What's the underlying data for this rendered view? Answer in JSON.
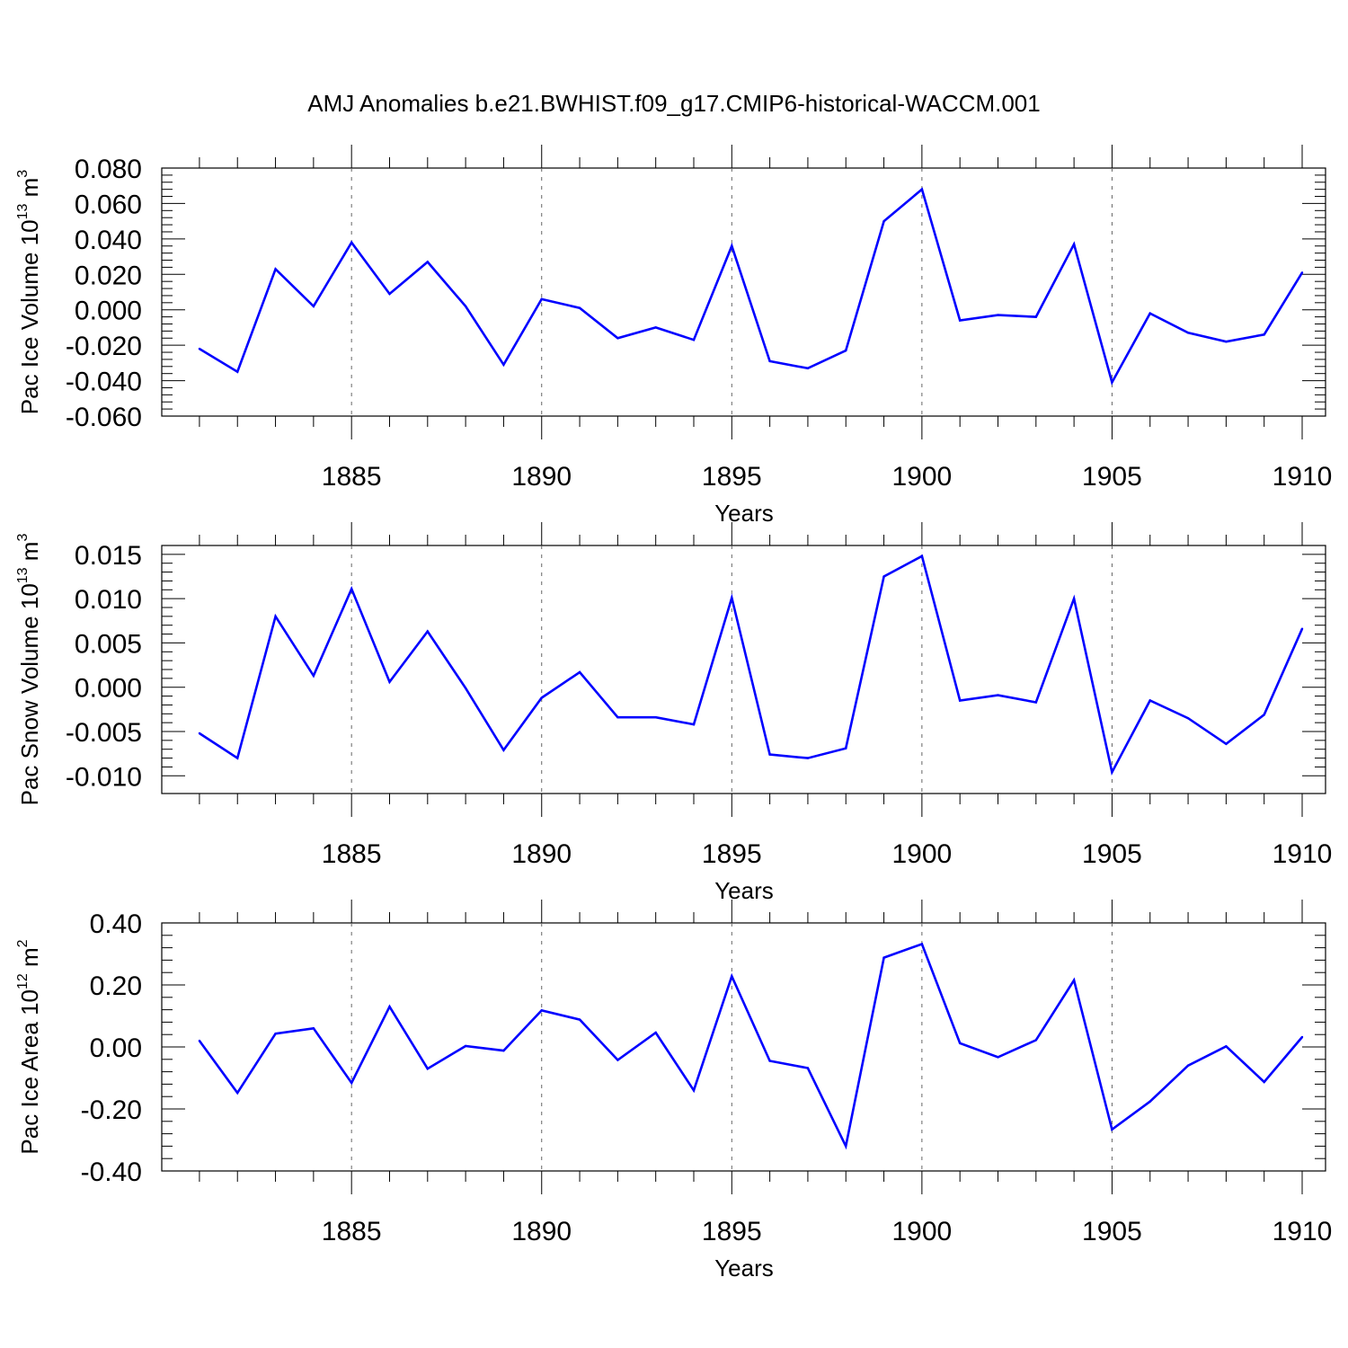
{
  "title": "AMJ Anomalies b.e21.BWHIST.f09_g17.CMIP6-historical-WACCM.001",
  "line_color": "#0000ff",
  "chart_data": [
    {
      "type": "line",
      "title": "AMJ Anomalies b.e21.BWHIST.f09_g17.CMIP6-historical-WACCM.001",
      "xlabel": "Years",
      "ylabel": {
        "text": "Pac Ice Volume 10",
        "exp": "13",
        "unit": " m",
        "unit_exp": "3"
      },
      "xlim": [
        1880.6,
        1910
      ],
      "ylim": [
        -0.06,
        0.08
      ],
      "x_ticks": [
        1885,
        1890,
        1895,
        1900,
        1905,
        1910
      ],
      "x_ticklabels": [
        "1885",
        "1890",
        "1895",
        "1900",
        "1905",
        "1910"
      ],
      "y_ticks": [
        -0.06,
        -0.04,
        -0.02,
        0.0,
        0.02,
        0.04,
        0.06,
        0.08
      ],
      "y_ticklabels": [
        "-0.060",
        "-0.040",
        "-0.020",
        "0.000",
        "0.020",
        "0.040",
        "0.060",
        "0.080"
      ],
      "x": [
        1881,
        1882,
        1883,
        1884,
        1885,
        1886,
        1887,
        1888,
        1889,
        1890,
        1891,
        1892,
        1893,
        1894,
        1895,
        1896,
        1897,
        1898,
        1899,
        1900,
        1901,
        1902,
        1903,
        1904,
        1905,
        1906,
        1907,
        1908,
        1909,
        1910
      ],
      "series": [
        {
          "values": [
            -0.022,
            -0.035,
            0.023,
            0.002,
            0.038,
            0.009,
            0.027,
            0.002,
            -0.031,
            0.006,
            0.001,
            -0.016,
            -0.01,
            -0.017,
            0.036,
            -0.029,
            -0.033,
            -0.023,
            0.05,
            0.068,
            -0.006,
            -0.003,
            -0.004,
            0.037,
            -0.041,
            -0.002,
            -0.013,
            -0.018,
            -0.014,
            0.021
          ],
          "color": "#0000ff"
        }
      ]
    },
    {
      "type": "line",
      "xlabel": "Years",
      "ylabel": {
        "text": "Pac Snow Volume 10",
        "exp": "13",
        "unit": " m",
        "unit_exp": "3"
      },
      "xlim": [
        1880.6,
        1910
      ],
      "ylim": [
        -0.012,
        0.016
      ],
      "x_ticks": [
        1885,
        1890,
        1895,
        1900,
        1905,
        1910
      ],
      "x_ticklabels": [
        "1885",
        "1890",
        "1895",
        "1900",
        "1905",
        "1910"
      ],
      "y_ticks": [
        -0.01,
        -0.005,
        0.0,
        0.005,
        0.01,
        0.015
      ],
      "y_ticklabels": [
        "-0.010",
        "-0.005",
        "0.000",
        "0.005",
        "0.010",
        "0.015"
      ],
      "x": [
        1881,
        1882,
        1883,
        1884,
        1885,
        1886,
        1887,
        1888,
        1889,
        1890,
        1891,
        1892,
        1893,
        1894,
        1895,
        1896,
        1897,
        1898,
        1899,
        1900,
        1901,
        1902,
        1903,
        1904,
        1905,
        1906,
        1907,
        1908,
        1909,
        1910
      ],
      "series": [
        {
          "values": [
            -0.0052,
            -0.008,
            0.008,
            0.0013,
            0.0111,
            0.0006,
            0.0063,
            -0.0001,
            -0.0071,
            -0.0012,
            0.0017,
            -0.0034,
            -0.0034,
            -0.0042,
            0.0101,
            -0.0076,
            -0.008,
            -0.0069,
            0.0125,
            0.0148,
            -0.0015,
            -0.0009,
            -0.0017,
            0.01,
            -0.0096,
            -0.0015,
            -0.0035,
            -0.0064,
            -0.0031,
            0.0066
          ],
          "color": "#0000ff"
        }
      ]
    },
    {
      "type": "line",
      "xlabel": "Years",
      "ylabel": {
        "text": "Pac Ice Area 10",
        "exp": "12",
        "unit": " m",
        "unit_exp": "2"
      },
      "xlim": [
        1880.6,
        1910
      ],
      "ylim": [
        -0.4,
        0.4
      ],
      "x_ticks": [
        1885,
        1890,
        1895,
        1900,
        1905,
        1910
      ],
      "x_ticklabels": [
        "1885",
        "1890",
        "1895",
        "1900",
        "1905",
        "1910"
      ],
      "y_ticks": [
        -0.4,
        -0.2,
        0.0,
        0.2,
        0.4
      ],
      "y_ticklabels": [
        "-0.40",
        "-0.20",
        "0.00",
        "0.20",
        "0.40"
      ],
      "x": [
        1881,
        1882,
        1883,
        1884,
        1885,
        1886,
        1887,
        1888,
        1889,
        1890,
        1891,
        1892,
        1893,
        1894,
        1895,
        1896,
        1897,
        1898,
        1899,
        1900,
        1901,
        1902,
        1903,
        1904,
        1905,
        1906,
        1907,
        1908,
        1909,
        1910
      ],
      "series": [
        {
          "values": [
            0.02,
            -0.148,
            0.043,
            0.06,
            -0.116,
            0.13,
            -0.07,
            0.003,
            -0.012,
            0.118,
            0.088,
            -0.042,
            0.046,
            -0.14,
            0.228,
            -0.045,
            -0.068,
            -0.32,
            0.288,
            0.332,
            0.012,
            -0.033,
            0.022,
            0.215,
            -0.266,
            -0.176,
            -0.06,
            0.002,
            -0.113,
            0.032
          ],
          "color": "#0000ff"
        }
      ]
    }
  ]
}
